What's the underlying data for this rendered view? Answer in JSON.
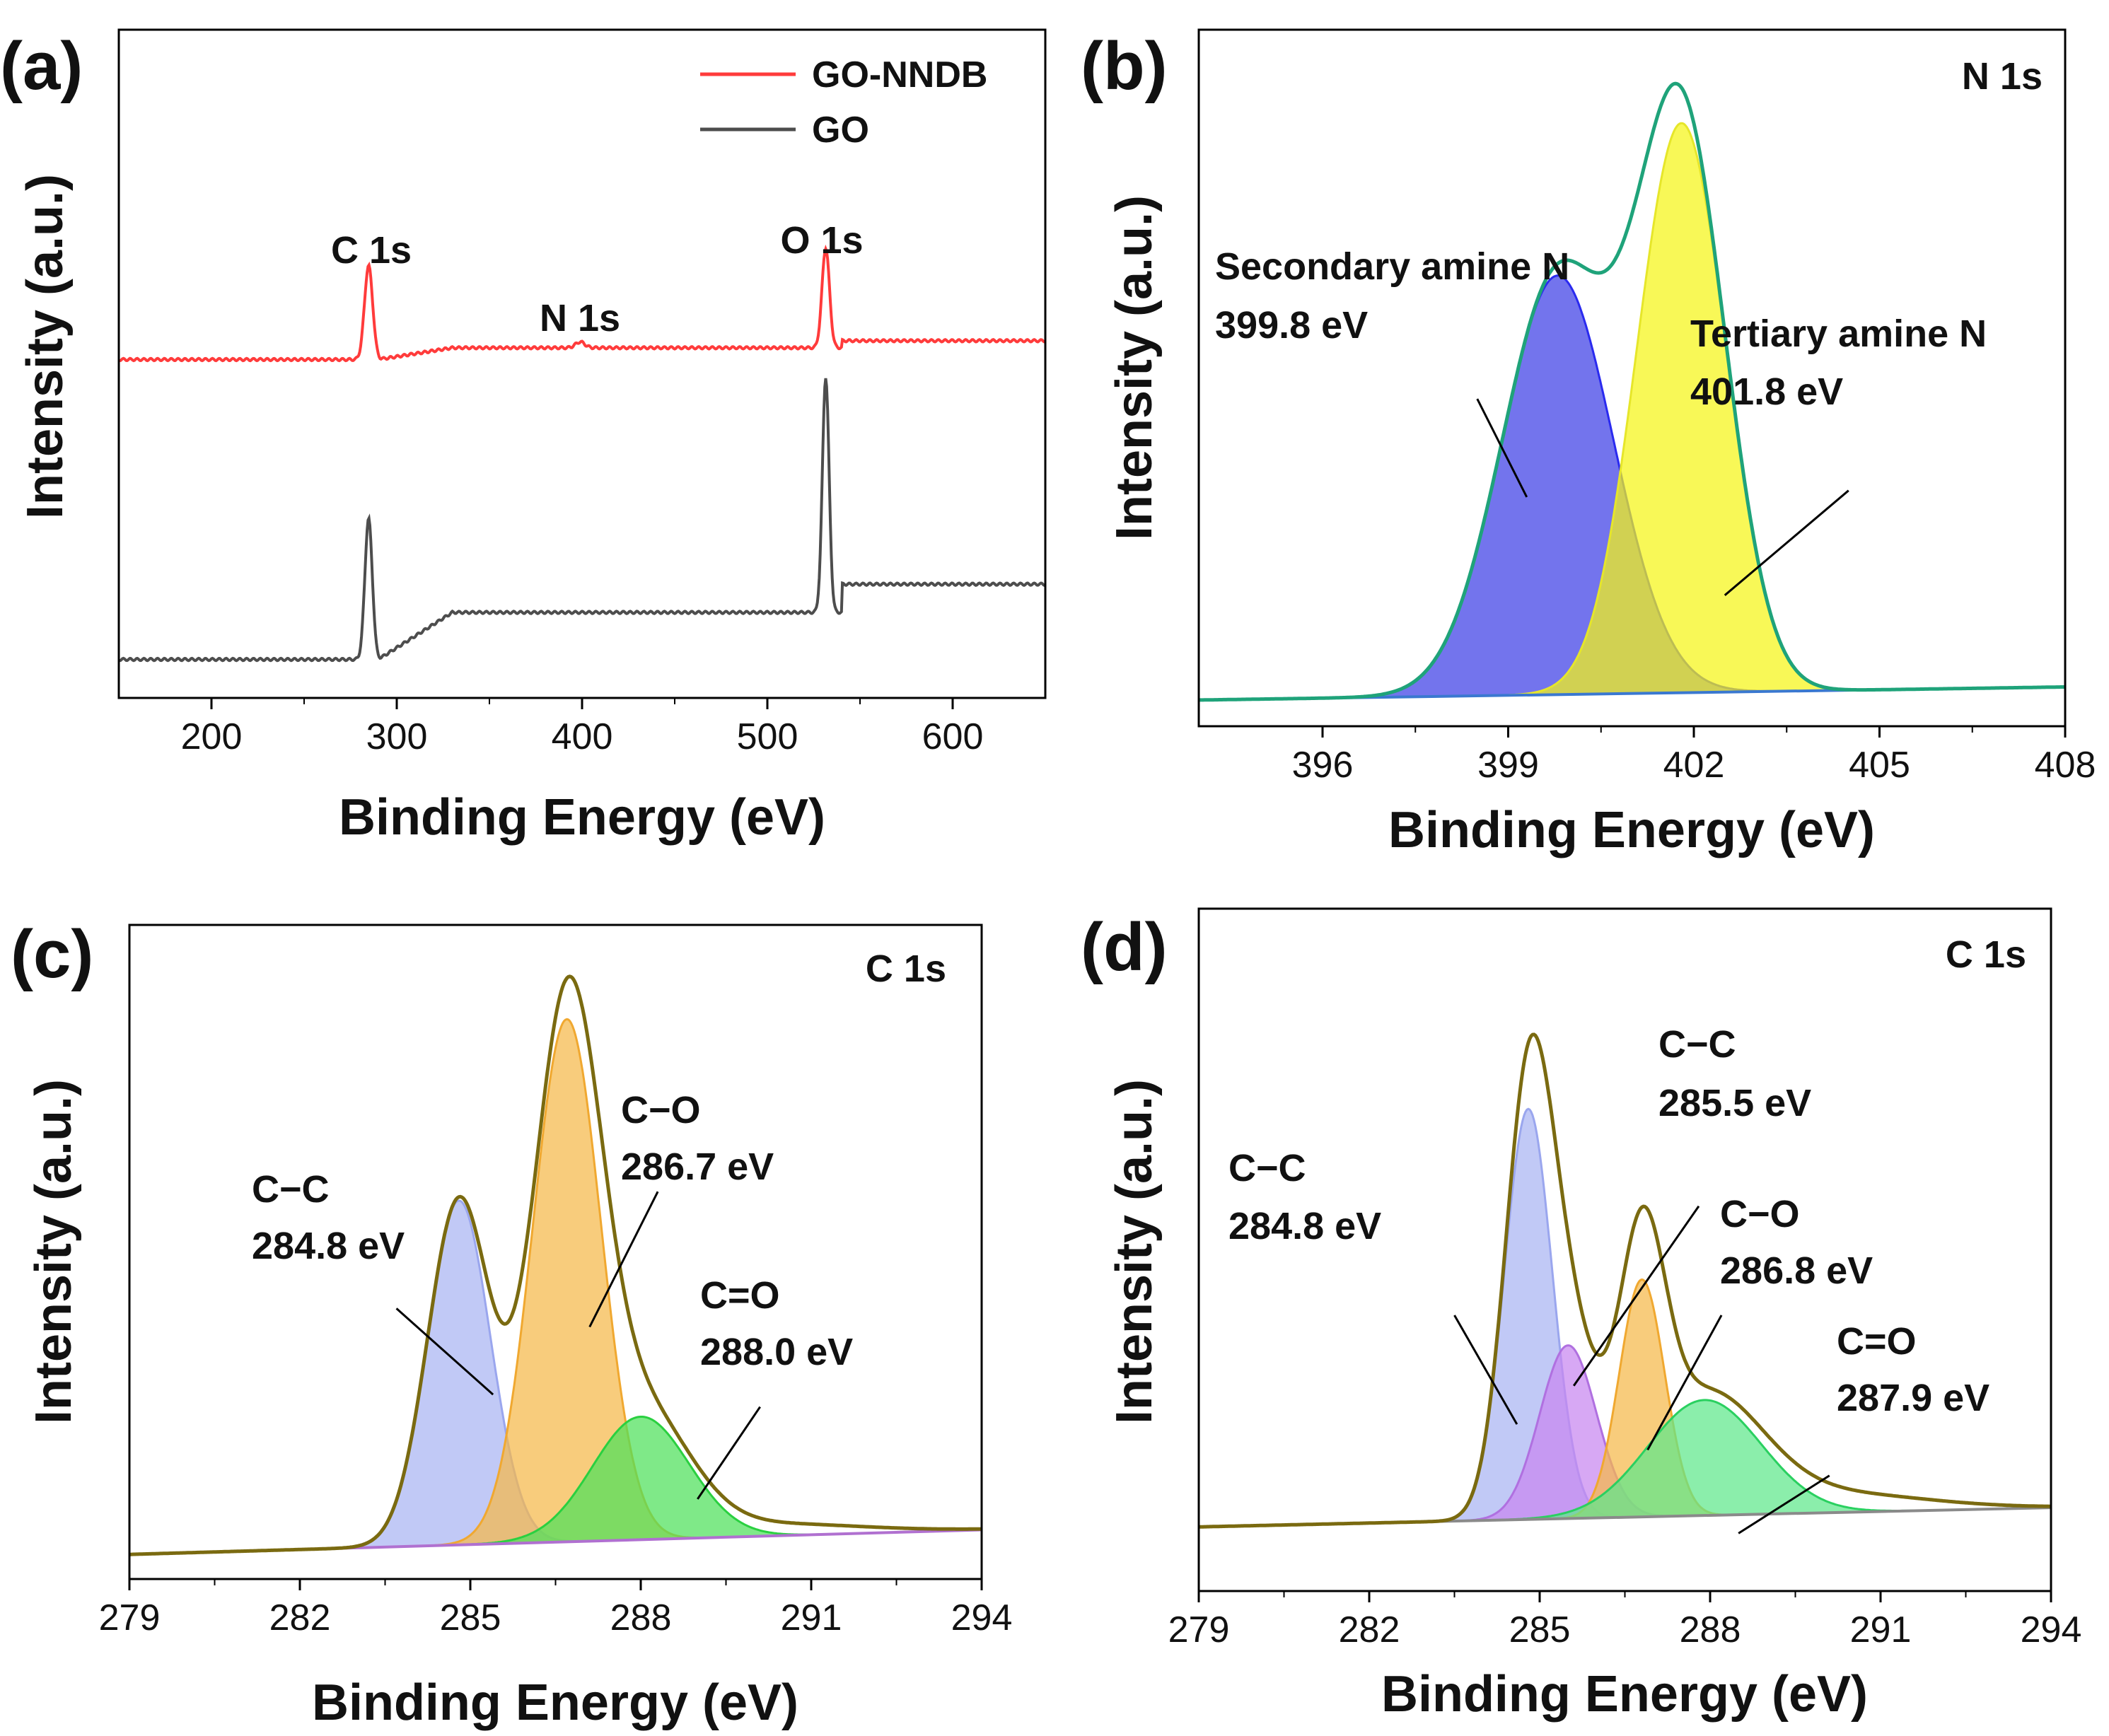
{
  "chart_data": [
    {
      "panel": "(a)",
      "type": "line",
      "title": "",
      "xlabel": "Binding Energy (eV)",
      "ylabel": "Intensity (a.u.)",
      "xlim": [
        150,
        650
      ],
      "ylim": [
        0,
        1
      ],
      "xticks": [
        200,
        300,
        400,
        500,
        600
      ],
      "grid": false,
      "legend_position": "top-right",
      "series": [
        {
          "name": "GO-NNDB",
          "color": "#ff3b3b",
          "baseline": 0.53,
          "tail": 0.55,
          "peaks": [
            {
              "center": 284.8,
              "height": 0.16,
              "width": 2.2
            },
            {
              "center": 399.0,
              "height": 0.01,
              "width": 2.5
            },
            {
              "center": 531.5,
              "height": 0.17,
              "width": 2.0
            }
          ]
        },
        {
          "name": "GO",
          "color": "#4d4d4d",
          "baseline": 0.02,
          "tail": 0.1,
          "peaks": [
            {
              "center": 284.8,
              "height": 0.24,
              "width": 2.0
            },
            {
              "center": 531.5,
              "height": 0.4,
              "width": 1.8
            }
          ]
        }
      ],
      "annotations": [
        {
          "text": "C 1s",
          "x": 284.8,
          "y": 0.72
        },
        {
          "text": "N 1s",
          "x": 399.0,
          "y": 0.6
        },
        {
          "text": "O 1s",
          "x": 531.5,
          "y": 0.73
        }
      ]
    },
    {
      "panel": "(b)",
      "type": "area",
      "title": "N 1s",
      "xlabel": "Binding Energy (eV)",
      "ylabel": "Intensity (a.u.)",
      "xlim": [
        394.0,
        408.0
      ],
      "ylim": [
        0,
        1
      ],
      "xticks": [
        396,
        399,
        402,
        405,
        408
      ],
      "grid": false,
      "background": {
        "start": 0.04,
        "end": 0.06,
        "color": "#3a78d0"
      },
      "envelope_color": "#1fa37a",
      "components": [
        {
          "name": "Secondary amine N",
          "center": 399.8,
          "height": 0.64,
          "width": 0.9,
          "fill": "#3d3ee6",
          "stroke": "#2a2aef"
        },
        {
          "name": "Tertiary amine N",
          "center": 401.8,
          "height": 0.87,
          "width": 0.72,
          "fill": "#f5f516",
          "stroke": "#e6e62a"
        }
      ],
      "annotations": [
        {
          "lines": [
            "Secondary amine N",
            "399.8 eV"
          ],
          "x": 394.3,
          "y": 0.61,
          "pointer": [
            [
              398.5,
              0.5
            ],
            [
              399.3,
              0.35
            ]
          ]
        },
        {
          "lines": [
            "Tertiary amine N",
            "401.8 eV"
          ],
          "x": 401.4,
          "y": 0.52,
          "pointer": [
            [
              404.5,
              0.36
            ],
            [
              402.5,
              0.2
            ]
          ]
        }
      ]
    },
    {
      "panel": "(c)",
      "type": "area",
      "title": "C 1s",
      "xlabel": "Binding Energy (eV)",
      "ylabel": "Intensity (a.u.)",
      "xlim": [
        279,
        294
      ],
      "ylim": [
        0,
        1
      ],
      "xticks": [
        279,
        282,
        285,
        288,
        291,
        294
      ],
      "grid": false,
      "background": {
        "start": 0.04,
        "end": 0.08,
        "color": "#b070d0"
      },
      "envelope_color": "#7a6a10",
      "components": [
        {
          "name": "C−C",
          "center": 284.8,
          "height": 0.56,
          "width": 0.55,
          "fill": "#a9b4f2",
          "stroke": "#9aa6ee"
        },
        {
          "name": "C−O",
          "center": 286.7,
          "height": 0.85,
          "width": 0.6,
          "fill": "#f5b94a",
          "stroke": "#f0a830"
        },
        {
          "name": "C=O",
          "center": 288.0,
          "height": 0.2,
          "width": 0.85,
          "fill": "#4ee05a",
          "stroke": "#2ad040"
        }
      ],
      "annotations": [
        {
          "lines": [
            "C−C",
            "284.8 eV"
          ],
          "x": 281.2,
          "y": 0.67,
          "pointer": [
            [
              283.7,
              0.44
            ],
            [
              285.4,
              0.3
            ]
          ]
        },
        {
          "lines": [
            "C−O",
            "286.7 eV"
          ],
          "x": 287.0,
          "y": 0.82,
          "pointer": [
            [
              288.3,
              0.63
            ],
            [
              287.1,
              0.41
            ]
          ]
        },
        {
          "lines": [
            "C=O",
            "288.0 eV"
          ],
          "x": 289.3,
          "y": 0.48,
          "pointer": [
            [
              290.1,
              0.28
            ],
            [
              289.0,
              0.13
            ]
          ]
        }
      ]
    },
    {
      "panel": "(d)",
      "type": "area",
      "title": "C 1s",
      "xlabel": "Binding Energy (eV)",
      "ylabel": "Intensity (a.u.)",
      "xlim": [
        279,
        294
      ],
      "ylim": [
        0,
        1
      ],
      "xticks": [
        279,
        282,
        285,
        288,
        291,
        294
      ],
      "grid": false,
      "background": {
        "start": 0.1,
        "end": 0.13,
        "color": "#8a8a8a"
      },
      "envelope_color": "#7a6a10",
      "components": [
        {
          "name": "C−C",
          "center": 284.8,
          "height": 0.64,
          "width": 0.42,
          "fill": "#a9b4f2",
          "stroke": "#9aa6ee"
        },
        {
          "name": "C−C",
          "center": 285.5,
          "height": 0.27,
          "width": 0.5,
          "fill": "#c886f0",
          "stroke": "#b070e0"
        },
        {
          "name": "C−O",
          "center": 286.8,
          "height": 0.37,
          "width": 0.4,
          "fill": "#f5b94a",
          "stroke": "#f0a830"
        },
        {
          "name": "C=O",
          "center": 287.9,
          "height": 0.18,
          "width": 1.0,
          "fill": "#5ee88a",
          "stroke": "#2ad060"
        }
      ],
      "annotations": [
        {
          "lines": [
            "C−C",
            "284.8 eV"
          ],
          "x": 279.5,
          "y": 0.6,
          "pointer": [
            [
              283.5,
              0.43
            ],
            [
              284.6,
              0.26
            ]
          ]
        },
        {
          "lines": [
            "C−C",
            "285.5 eV"
          ],
          "x": 286.0,
          "y": 0.87,
          "pointer": [
            [
              287.8,
              0.6
            ],
            [
              285.6,
              0.32
            ]
          ]
        },
        {
          "lines": [
            "C−O",
            "286.8 eV"
          ],
          "x": 288.0,
          "y": 0.58,
          "pointer": [
            [
              288.2,
              0.43
            ],
            [
              286.9,
              0.22
            ]
          ]
        },
        {
          "lines": [
            "C=O",
            "287.9 eV"
          ],
          "x": 290.1,
          "y": 0.33,
          "pointer": [
            [
              290.1,
              0.18
            ],
            [
              288.5,
              0.09
            ]
          ]
        }
      ]
    }
  ]
}
